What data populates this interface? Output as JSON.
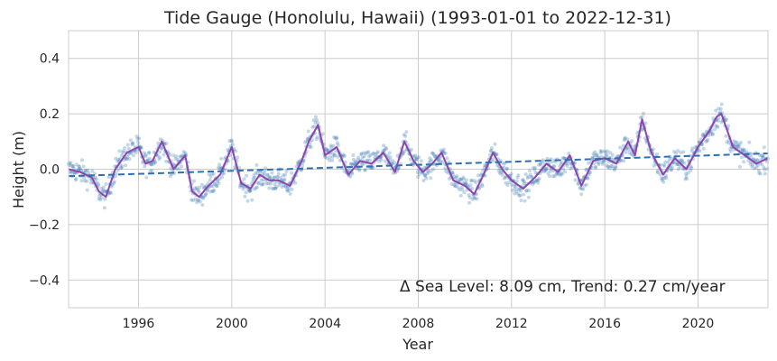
{
  "chart_data": {
    "type": "scatter",
    "title": "Tide Gauge (Honolulu, Hawaii) (1993-01-01 to 2022-12-31)",
    "xlabel": "Year",
    "ylabel": "Height (m)",
    "xlim": [
      1993.0,
      2023.0
    ],
    "ylim": [
      -0.5,
      0.5
    ],
    "x_ticks": [
      1996,
      2000,
      2004,
      2008,
      2012,
      2016,
      2020
    ],
    "y_ticks": [
      -0.4,
      -0.2,
      0.0,
      0.2,
      0.4
    ],
    "y_tick_labels": [
      "−0.4",
      "−0.2",
      "0.0",
      "0.2",
      "0.4"
    ],
    "grid": true,
    "annotation": "Δ Sea Level: 8.09 cm, Trend: 0.27 cm/year",
    "colors": {
      "scatter": "#3b7bb4",
      "smoothed": "#8e44ad",
      "trend": "#2f6fb0"
    },
    "series": [
      {
        "kind": "smoothed_line",
        "x": [
          1993.0,
          1993.5,
          1994.0,
          1994.3,
          1994.6,
          1995.0,
          1995.5,
          1996.0,
          1996.3,
          1996.6,
          1997.0,
          1997.5,
          1998.0,
          1998.3,
          1998.6,
          1999.0,
          1999.5,
          2000.0,
          2000.4,
          2000.8,
          2001.2,
          2001.6,
          2002.0,
          2002.5,
          2003.0,
          2003.3,
          2003.7,
          2004.0,
          2004.5,
          2005.0,
          2005.5,
          2006.0,
          2006.5,
          2007.0,
          2007.4,
          2007.8,
          2008.2,
          2008.6,
          2009.0,
          2009.5,
          2010.0,
          2010.4,
          2010.8,
          2011.2,
          2011.6,
          2012.0,
          2012.5,
          2013.0,
          2013.5,
          2014.0,
          2014.5,
          2015.0,
          2015.5,
          2016.0,
          2016.5,
          2017.0,
          2017.3,
          2017.6,
          2018.0,
          2018.5,
          2019.0,
          2019.5,
          2020.0,
          2020.5,
          2020.8,
          2021.0,
          2021.5,
          2022.0,
          2022.5,
          2023.0
        ],
        "y": [
          0.0,
          -0.01,
          -0.03,
          -0.08,
          -0.1,
          0.0,
          0.06,
          0.08,
          0.02,
          0.03,
          0.1,
          0.0,
          0.05,
          -0.08,
          -0.1,
          -0.06,
          -0.02,
          0.08,
          -0.05,
          -0.07,
          -0.02,
          -0.04,
          -0.04,
          -0.06,
          0.03,
          0.1,
          0.16,
          0.05,
          0.08,
          -0.02,
          0.03,
          0.02,
          0.06,
          -0.01,
          0.1,
          0.03,
          -0.01,
          0.02,
          0.06,
          -0.04,
          -0.06,
          -0.09,
          -0.02,
          0.06,
          0.0,
          -0.04,
          -0.07,
          -0.03,
          0.02,
          -0.01,
          0.05,
          -0.06,
          0.03,
          0.04,
          0.02,
          0.1,
          0.05,
          0.18,
          0.06,
          -0.02,
          0.04,
          0.0,
          0.08,
          0.14,
          0.19,
          0.2,
          0.08,
          0.05,
          0.02,
          0.04
        ]
      },
      {
        "kind": "trend_line",
        "x": [
          1993.0,
          2023.0
        ],
        "y": [
          -0.025,
          0.057
        ]
      }
    ]
  }
}
